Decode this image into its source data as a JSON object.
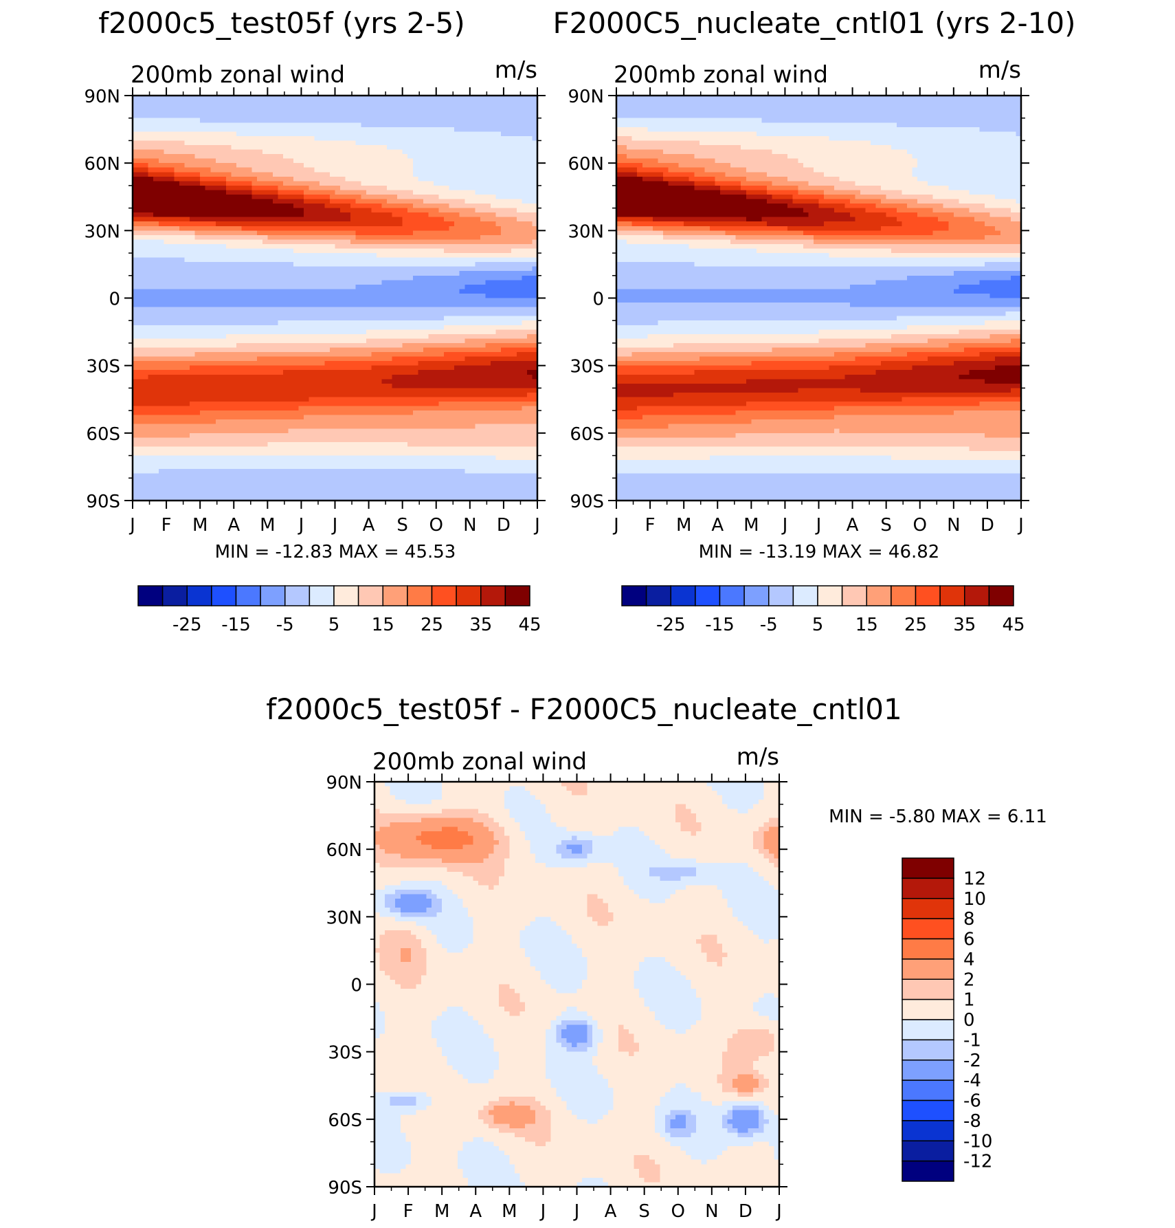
{
  "colors": {
    "scale16": [
      "#00007f",
      "#0a1ea0",
      "#0a34d2",
      "#1e50ff",
      "#4b78ff",
      "#7da0ff",
      "#b4c8ff",
      "#dcebff",
      "#ffebdc",
      "#ffc8b4",
      "#ffa078",
      "#ff7b46",
      "#ff5020",
      "#e0340a",
      "#b4180a",
      "#7f0000"
    ],
    "scale17": [
      "#00007f",
      "#0a1ea0",
      "#0a34d2",
      "#1e50ff",
      "#4b78ff",
      "#7da0ff",
      "#b4c8ff",
      "#dcebff",
      "#ffebdc",
      "#ffc8b4",
      "#ffa078",
      "#ff7b46",
      "#ff5020",
      "#e0340a",
      "#b4180a",
      "#7f0000",
      "#7f0000"
    ]
  },
  "chart_data": [
    {
      "id": "panel-test",
      "type": "heatmap",
      "title": "f2000c5_test05f (yrs 2-5)",
      "left_label": "200mb zonal wind",
      "right_label": "m/s",
      "min_max_text": "MIN = -12.83 MAX = 45.53",
      "x_ticks": [
        "J",
        "F",
        "M",
        "A",
        "M",
        "J",
        "J",
        "A",
        "S",
        "O",
        "N",
        "D",
        "J"
      ],
      "y_ticks": [
        "90N",
        "60N",
        "30N",
        "0",
        "30S",
        "60S",
        "90S"
      ],
      "colorbar_labels": [
        "-25",
        "-15",
        "-5",
        "5",
        "15",
        "25",
        "35",
        "45"
      ],
      "contour_levels": [
        -30,
        -25,
        -20,
        -15,
        -10,
        -5,
        0,
        5,
        10,
        15,
        20,
        25,
        30,
        35,
        40,
        45
      ],
      "min": -12.83,
      "max": 45.53
    },
    {
      "id": "panel-cntl",
      "type": "heatmap",
      "title": "F2000C5_nucleate_cntl01 (yrs 2-10)",
      "left_label": "200mb zonal wind",
      "right_label": "m/s",
      "min_max_text": "MIN = -13.19 MAX = 46.82",
      "x_ticks": [
        "J",
        "F",
        "M",
        "A",
        "M",
        "J",
        "J",
        "A",
        "S",
        "O",
        "N",
        "D",
        "J"
      ],
      "y_ticks": [
        "90N",
        "60N",
        "30N",
        "0",
        "30S",
        "60S",
        "90S"
      ],
      "colorbar_labels": [
        "-25",
        "-15",
        "-5",
        "5",
        "15",
        "25",
        "35",
        "45"
      ],
      "contour_levels": [
        -30,
        -25,
        -20,
        -15,
        -10,
        -5,
        0,
        5,
        10,
        15,
        20,
        25,
        30,
        35,
        40,
        45
      ],
      "min": -13.19,
      "max": 46.82
    },
    {
      "id": "panel-diff",
      "type": "heatmap",
      "title": "f2000c5_test05f - F2000C5_nucleate_cntl01",
      "left_label": "200mb zonal wind",
      "right_label": "m/s",
      "min_max_text": "MIN = -5.80 MAX = 6.11",
      "x_ticks": [
        "J",
        "F",
        "M",
        "A",
        "M",
        "J",
        "J",
        "A",
        "S",
        "O",
        "N",
        "D",
        "J"
      ],
      "y_ticks": [
        "90N",
        "60N",
        "30N",
        "0",
        "30S",
        "60S",
        "90S"
      ],
      "colorbar_labels": [
        "12",
        "10",
        "8",
        "6",
        "4",
        "2",
        "1",
        "0",
        "-1",
        "-2",
        "-4",
        "-6",
        "-8",
        "-10",
        "-12"
      ],
      "contour_levels": [
        -12,
        -10,
        -8,
        -6,
        -4,
        -2,
        -1,
        0,
        1,
        2,
        4,
        6,
        8,
        10,
        12
      ],
      "min": -5.8,
      "max": 6.11
    }
  ]
}
